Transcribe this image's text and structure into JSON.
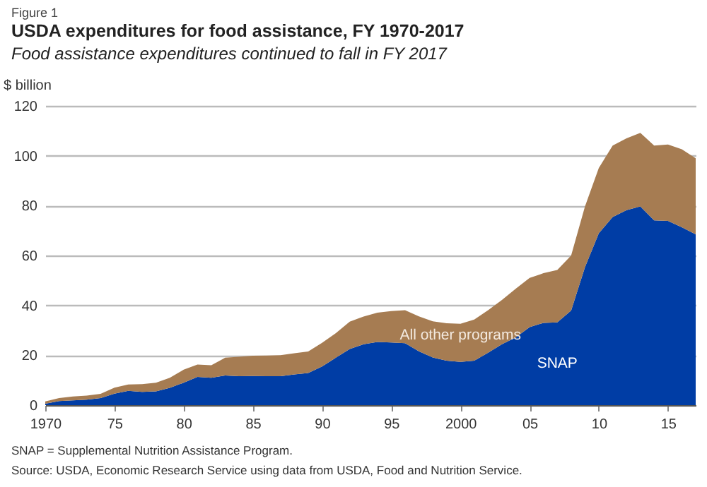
{
  "chart_data": {
    "type": "area",
    "title": "USDA expenditures for food assistance, FY 1970-2017",
    "subtitle": "Food assistance expenditures continued to fall in FY 2017",
    "ylabel": "$ billion",
    "annotations": [
      "Figure 1",
      "SNAP = Supplemental Nutrition Assistance Program.",
      "Source: USDA, Economic Research Service using data from USDA, Food and Nutrition Service."
    ],
    "x": [
      1970,
      1971,
      1972,
      1973,
      1974,
      1975,
      1976,
      1977,
      1978,
      1979,
      1980,
      1981,
      1982,
      1983,
      1984,
      1985,
      1986,
      1987,
      1988,
      1989,
      1990,
      1991,
      1992,
      1993,
      1994,
      1995,
      1996,
      1997,
      1998,
      1999,
      2000,
      2001,
      2002,
      2003,
      2004,
      2005,
      2006,
      2007,
      2008,
      2009,
      2010,
      2011,
      2012,
      2013,
      2014,
      2015,
      2016,
      2017
    ],
    "stacked": true,
    "series": [
      {
        "name": "SNAP",
        "color": "#003da5",
        "values": [
          0.6,
          1.6,
          1.9,
          2.2,
          2.8,
          4.6,
          5.7,
          5.3,
          5.5,
          6.9,
          9,
          11.3,
          11,
          11.9,
          11.6,
          11.7,
          11.6,
          11.6,
          12.3,
          12.9,
          15.5,
          19,
          22.5,
          24.4,
          25.3,
          25.1,
          24.8,
          21.6,
          19.1,
          17.8,
          17.3,
          17.8,
          21,
          24.4,
          27.2,
          31.3,
          33,
          33.2,
          37.9,
          55.3,
          68.9,
          75.4,
          78.2,
          79.7,
          74.1,
          73.9,
          71.3,
          68.5
        ]
      },
      {
        "name": "All other programs",
        "color": "#a67c52",
        "values": [
          0.9,
          1.2,
          1.6,
          1.6,
          1.7,
          2.4,
          2.6,
          3.1,
          3.5,
          4.1,
          5.2,
          5,
          5,
          7.1,
          7.8,
          8.1,
          8.3,
          8.4,
          8.5,
          8.6,
          9.5,
          9.9,
          11,
          11.1,
          11.8,
          12.6,
          13.3,
          14,
          14.5,
          15,
          15.3,
          16.5,
          17.1,
          17.8,
          19.5,
          19.7,
          19.9,
          21,
          22.1,
          24.4,
          26.2,
          28.7,
          28.8,
          29.5,
          30,
          30.6,
          31.3,
          30.5
        ]
      }
    ],
    "xlim": [
      1970,
      2017
    ],
    "xticks": [
      {
        "value": 1970,
        "label": "1970"
      },
      {
        "value": 1975,
        "label": "75"
      },
      {
        "value": 1980,
        "label": "80"
      },
      {
        "value": 1985,
        "label": "85"
      },
      {
        "value": 1990,
        "label": "90"
      },
      {
        "value": 1995,
        "label": "95"
      },
      {
        "value": 2000,
        "label": "2000"
      },
      {
        "value": 2005,
        "label": "05"
      },
      {
        "value": 2010,
        "label": "10"
      },
      {
        "value": 2015,
        "label": "15"
      }
    ],
    "ylim": [
      0,
      120
    ],
    "yticks": [
      0,
      20,
      40,
      60,
      80,
      100,
      120
    ],
    "grid": "y",
    "legend": false
  }
}
